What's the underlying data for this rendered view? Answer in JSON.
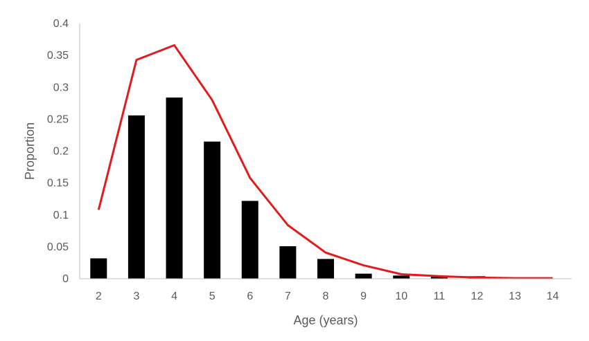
{
  "chart_data": {
    "type": "bar",
    "xlabel": "Age (years)",
    "ylabel": "Proportion",
    "ylim": [
      0,
      0.4
    ],
    "yticks": [
      0,
      0.05,
      0.1,
      0.15,
      0.2,
      0.25,
      0.3,
      0.35,
      0.4
    ],
    "ytick_labels": [
      "0",
      "0.05",
      "0.1",
      "0.15",
      "0.2",
      "0.25",
      "0.3",
      "0.35",
      "0.4"
    ],
    "categories": [
      "2",
      "3",
      "4",
      "5",
      "6",
      "7",
      "8",
      "9",
      "10",
      "11",
      "12",
      "13",
      "14"
    ],
    "grid": false,
    "legend": "none",
    "series": [
      {
        "type": "bar",
        "color": "#000000",
        "values": [
          0.032,
          0.256,
          0.284,
          0.215,
          0.122,
          0.051,
          0.031,
          0.008,
          0.005,
          0.003,
          0.004,
          0.0,
          0.0
        ]
      },
      {
        "type": "line",
        "color": "#e31a1c",
        "values": [
          0.108,
          0.343,
          0.366,
          0.28,
          0.158,
          0.084,
          0.041,
          0.021,
          0.007,
          0.004,
          0.002,
          0.001,
          0.001
        ]
      }
    ]
  }
}
